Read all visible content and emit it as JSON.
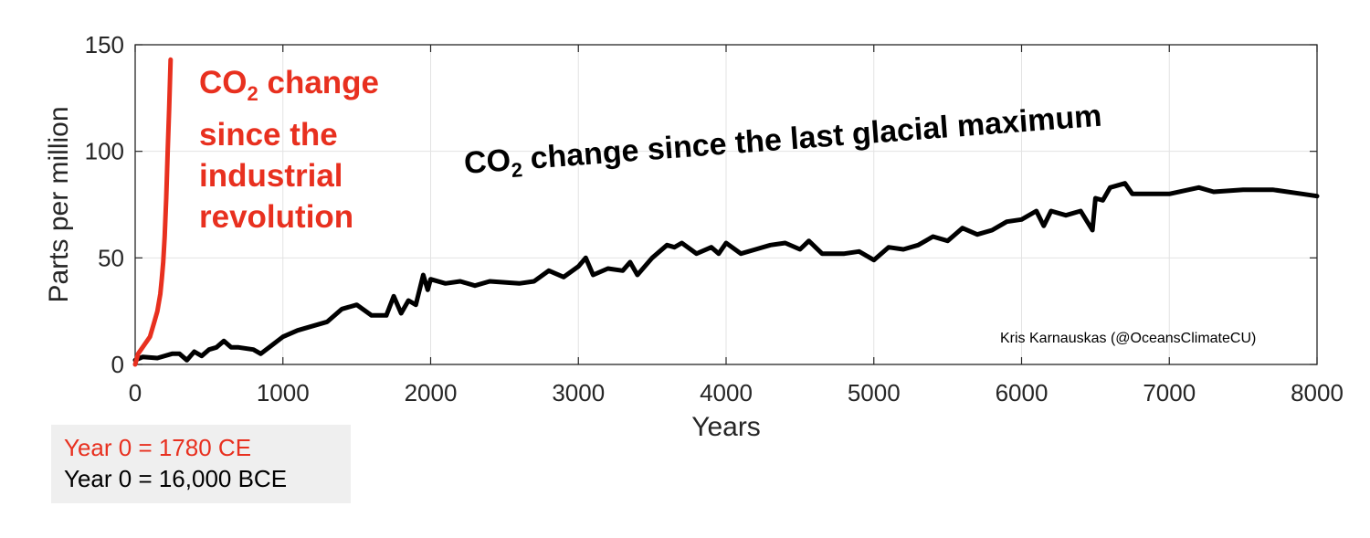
{
  "chart_data": {
    "type": "line",
    "xlabel": "Years",
    "ylabel": "Parts per million",
    "xlim": [
      0,
      8000
    ],
    "ylim": [
      0,
      150
    ],
    "xticks": [
      "0",
      "1000",
      "2000",
      "3000",
      "4000",
      "5000",
      "6000",
      "7000",
      "8000"
    ],
    "yticks": [
      "0",
      "50",
      "100",
      "150"
    ],
    "grid": true,
    "series": [
      {
        "name": "CO2 change since the industrial revolution",
        "color": "#e8301f",
        "x": [
          0,
          20,
          50,
          100,
          130,
          150,
          170,
          180,
          190,
          200,
          210,
          220,
          230,
          240
        ],
        "y": [
          0,
          5,
          8,
          13,
          20,
          25,
          33,
          40,
          48,
          60,
          78,
          100,
          120,
          143
        ]
      },
      {
        "name": "CO2 change since the last glacial maximum",
        "color": "#000000",
        "x": [
          0,
          50,
          150,
          250,
          300,
          350,
          400,
          450,
          500,
          550,
          600,
          650,
          700,
          800,
          850,
          1000,
          1100,
          1300,
          1400,
          1500,
          1600,
          1700,
          1750,
          1800,
          1850,
          1900,
          1950,
          1980,
          2000,
          2100,
          2200,
          2300,
          2400,
          2600,
          2700,
          2800,
          2900,
          3000,
          3050,
          3100,
          3200,
          3300,
          3350,
          3400,
          3500,
          3600,
          3650,
          3700,
          3800,
          3900,
          3950,
          4000,
          4100,
          4200,
          4300,
          4400,
          4500,
          4560,
          4650,
          4800,
          4900,
          5000,
          5100,
          5200,
          5300,
          5400,
          5500,
          5600,
          5700,
          5800,
          5900,
          6000,
          6100,
          6150,
          6200,
          6300,
          6400,
          6480,
          6500,
          6550,
          6600,
          6700,
          6750,
          6900,
          7000,
          7200,
          7300,
          7500,
          7700,
          7900,
          8000
        ],
        "y": [
          2,
          3.5,
          3,
          5,
          5,
          2,
          6,
          4,
          7,
          8,
          11,
          8,
          8,
          7,
          5,
          13,
          16,
          20,
          26,
          28,
          23,
          23,
          32,
          24,
          30,
          28,
          42,
          35,
          40,
          38,
          39,
          37,
          39,
          38,
          39,
          44,
          41,
          46,
          50,
          42,
          45,
          44,
          48,
          42,
          50,
          56,
          55,
          57,
          52,
          55,
          52,
          57,
          52,
          54,
          56,
          57,
          54,
          58,
          52,
          52,
          53,
          49,
          55,
          54,
          56,
          60,
          58,
          64,
          61,
          63,
          67,
          68,
          72,
          65,
          72,
          70,
          72,
          63,
          78,
          77,
          83,
          85,
          80,
          80,
          80,
          83,
          81,
          82,
          82,
          80,
          79
        ]
      }
    ]
  },
  "annotations": {
    "red_line1": "CO",
    "red_sub": "2",
    "red_line1_rest": " change",
    "red_line2": "since the",
    "red_line3": "industrial",
    "red_line4": "revolution",
    "black_pre": "CO",
    "black_sub": "2",
    "black_rest": " change since the last glacial maximum",
    "credit": "Kris Karnauskas (@OceansClimateCU)"
  },
  "legend": {
    "red_text": "Year 0 = 1780 CE",
    "black_text": "Year 0 = 16,000 BCE"
  }
}
